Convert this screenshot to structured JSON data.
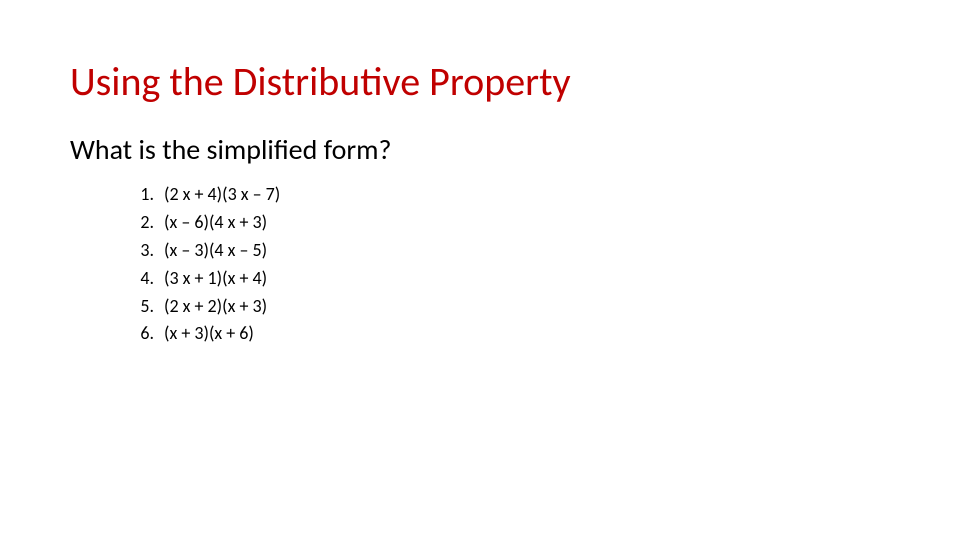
{
  "title": {
    "text": "Using the Distributive Property",
    "color": "#c00000",
    "fontsize": 40
  },
  "subheading": {
    "text": "What is the simplified form?",
    "color": "#000000",
    "fontsize": 28
  },
  "list": {
    "fontsize": 18,
    "color": "#000000",
    "items": [
      "(2 x + 4)(3 x – 7)",
      "(x – 6)(4 x + 3)",
      "(x – 3)(4 x – 5)",
      "(3 x + 1)(x + 4)",
      "(2 x + 2)(x + 3)",
      "(x + 3)(x + 6)"
    ]
  },
  "background_color": "#ffffff"
}
